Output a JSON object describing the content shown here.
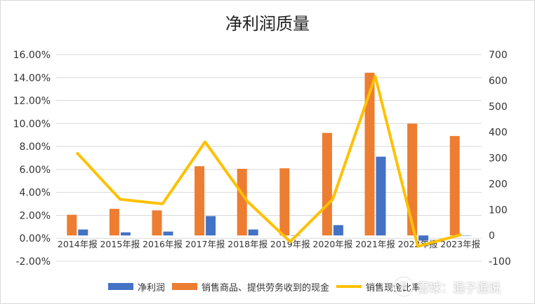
{
  "chart_data": {
    "type": "bar",
    "title": "净利润质量",
    "categories": [
      "2014年报",
      "2015年报",
      "2016年报",
      "2017年报",
      "2018年报",
      "2019年报",
      "2020年报",
      "2021年报",
      "2022年报",
      "2023年报"
    ],
    "series": [
      {
        "name": "净利润",
        "type": "bar",
        "axis": "right",
        "color": "#4472c4",
        "values": [
          23,
          12,
          15,
          75,
          23,
          0,
          40,
          305,
          -20,
          0
        ]
      },
      {
        "name": "销售商品、提供劳务收到的现金",
        "type": "bar",
        "axis": "right",
        "color": "#ed7d31",
        "values": [
          80,
          103,
          97,
          268,
          258,
          260,
          397,
          630,
          433,
          385
        ]
      },
      {
        "name": "销售现金比率",
        "type": "line",
        "axis": "left",
        "color": "#ffc000",
        "values": [
          7.4,
          3.4,
          3.0,
          8.4,
          3.2,
          -0.3,
          3.4,
          14.1,
          -0.7,
          0.3
        ]
      }
    ],
    "y_left": {
      "min": -2,
      "max": 16,
      "step": 2,
      "ticks": [
        "-2.00%",
        "0.00%",
        "2.00%",
        "4.00%",
        "6.00%",
        "8.00%",
        "10.00%",
        "12.00%",
        "14.00%",
        "16.00%"
      ]
    },
    "y_right": {
      "min": -100,
      "max": 700,
      "step": 100,
      "ticks": [
        "-100",
        "0",
        "100",
        "200",
        "300",
        "400",
        "500",
        "600",
        "700"
      ]
    },
    "grid": true,
    "legend_position": "bottom"
  },
  "watermark": {
    "logo": "雪",
    "text": "雪球：混子混说"
  }
}
